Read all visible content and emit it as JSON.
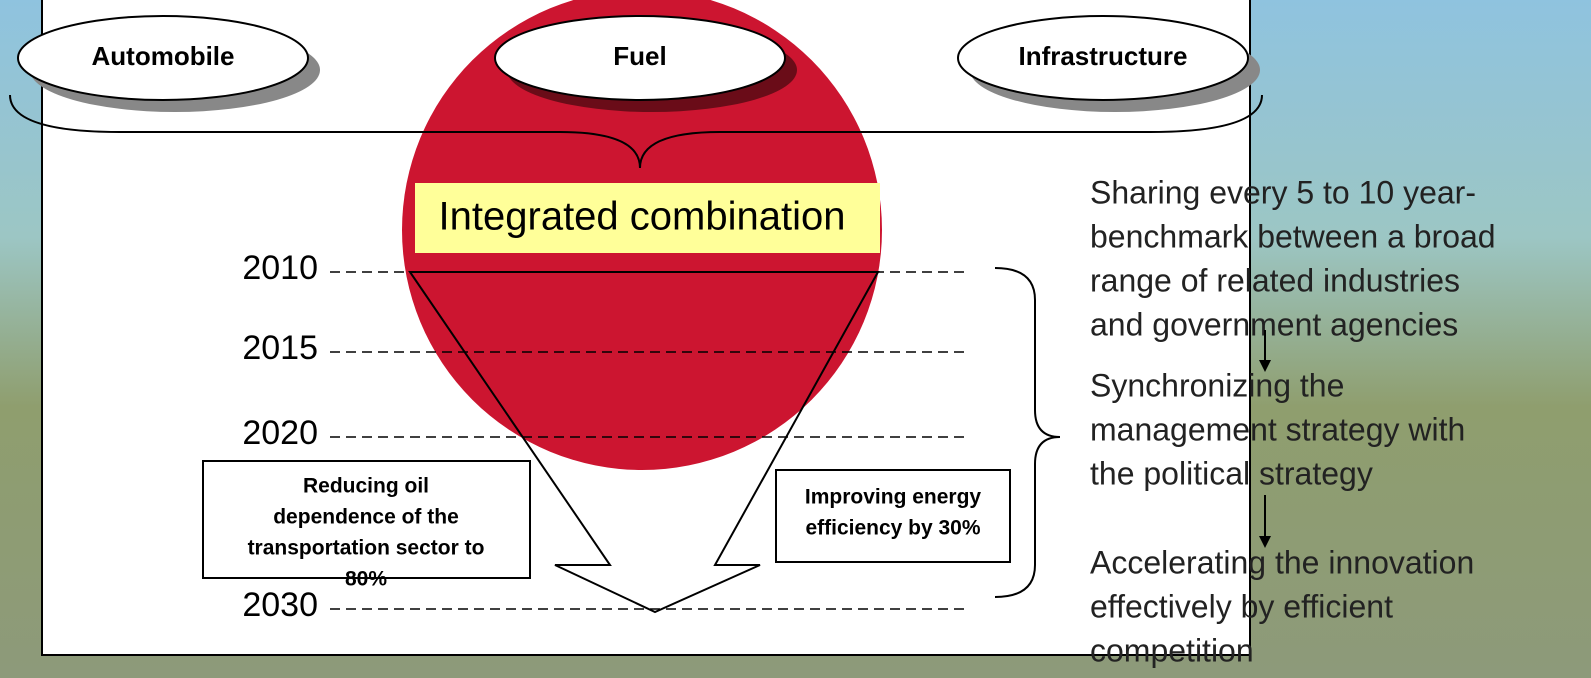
{
  "categories": [
    "Automobile",
    "Fuel",
    "Infrastructure"
  ],
  "center_label": "Integrated combination",
  "years": [
    "2010",
    "2015",
    "2020",
    "2030"
  ],
  "goals": [
    {
      "lines": [
        "Reducing oil",
        "dependence of the",
        "transportation sector to",
        "80%"
      ]
    },
    {
      "lines": [
        "Improving energy",
        "efficiency by 30%"
      ]
    }
  ],
  "steps": [
    {
      "lines": [
        "Sharing every 5 to 10 year-",
        "benchmark between a broad",
        "range of related industries",
        "and government agencies"
      ]
    },
    {
      "lines": [
        "Synchronizing the",
        "management strategy with",
        "the political strategy"
      ]
    },
    {
      "lines": [
        "Accelerating the innovation",
        "effectively by efficient",
        "competition"
      ]
    }
  ]
}
